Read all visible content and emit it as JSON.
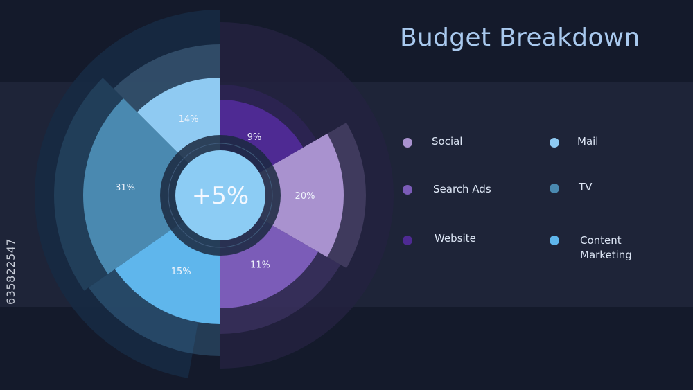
{
  "chart_data": {
    "type": "pie",
    "title": "Budget Breakdown",
    "center_label": "+5%",
    "slices": [
      {
        "name": "Social",
        "value": 20,
        "label": "20%",
        "color": "#a992cf"
      },
      {
        "name": "Search Ads",
        "value": 11,
        "label": "11%",
        "color": "#7b5cb8"
      },
      {
        "name": "Website",
        "value": 9,
        "label": "9%",
        "color": "#4e2a93"
      },
      {
        "name": "Mail",
        "value": 14,
        "label": "14%",
        "color": "#8fcaf2"
      },
      {
        "name": "TV",
        "value": 31,
        "label": "31%",
        "color": "#4a89b0"
      },
      {
        "name": "Content Marketing",
        "value": 15,
        "label": "15%",
        "color": "#5fb6ec"
      }
    ],
    "legend_position": "right"
  },
  "legend": [
    {
      "label": "Social",
      "color": "#a992cf"
    },
    {
      "label": "Mail",
      "color": "#8fcaf2"
    },
    {
      "label": "Search Ads",
      "color": "#7b5cb8"
    },
    {
      "label": "TV",
      "color": "#4a89b0"
    },
    {
      "label": "Website",
      "color": "#4e2a93"
    },
    {
      "label": "Content\nMarketing",
      "color": "#5fb6ec"
    }
  ],
  "stock_id": "635822547"
}
